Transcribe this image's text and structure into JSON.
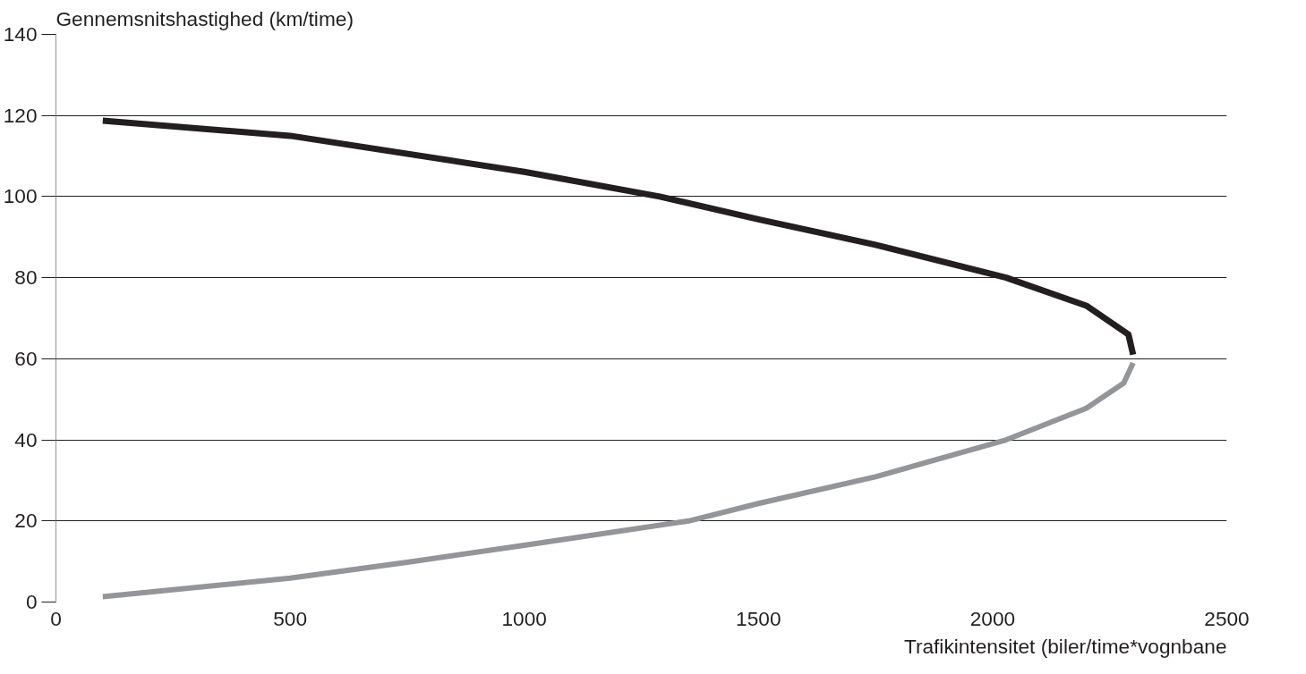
{
  "chart_data": {
    "type": "line",
    "xlabel": "Trafikintensitet (biler/time*vognbane",
    "ylabel": "Gennemsnitshastighed (km/time)",
    "xlim": [
      0,
      2500
    ],
    "xticks": [
      0,
      500,
      1000,
      1500,
      2000,
      2500
    ],
    "ylim": [
      0,
      140
    ],
    "yticks": [
      0,
      20,
      40,
      60,
      80,
      100,
      120,
      140
    ],
    "grid": "y",
    "marker": "none",
    "line_style": "solid",
    "series": [
      {
        "color": "#231f20",
        "x": [
          100,
          500,
          1000,
          1289,
          1500,
          1750,
          2029,
          2200,
          2290,
          2300
        ],
        "values": [
          118.7,
          115,
          106.1,
          100,
          94.4,
          88.1,
          80,
          73.1,
          66,
          61
        ]
      },
      {
        "color": "#939598",
        "x": [
          100,
          500,
          750,
          1000,
          1351,
          1500,
          1750,
          2029,
          2200,
          2280,
          2300
        ],
        "values": [
          1.3,
          5.9,
          9.8,
          14,
          20,
          24.3,
          30.9,
          40,
          47.8,
          54,
          59
        ]
      }
    ]
  }
}
